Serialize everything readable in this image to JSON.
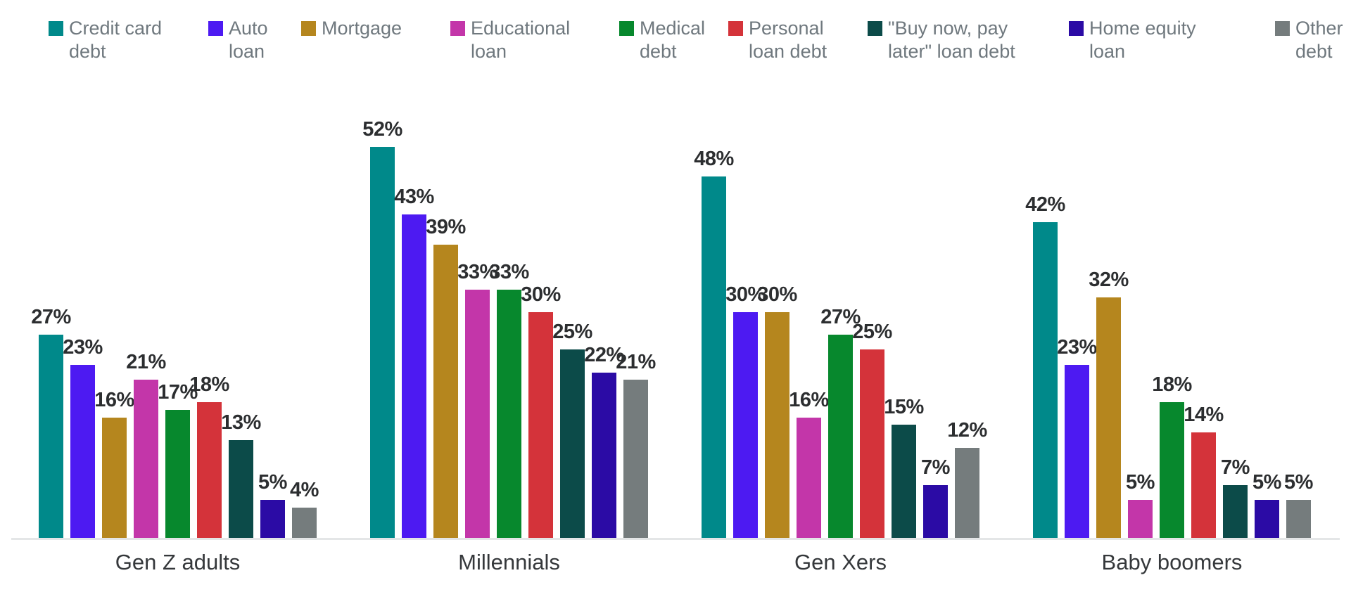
{
  "chart_data": {
    "type": "bar",
    "title": "",
    "xlabel": "",
    "ylabel": "",
    "value_suffix": "%",
    "ylim": [
      0,
      55
    ],
    "grid": false,
    "legend_position": "top",
    "categories": [
      "Gen Z adults",
      "Millennials",
      "Gen Xers",
      "Baby boomers"
    ],
    "series": [
      {
        "name": "Credit card debt",
        "legend_lines": "Credit card\ndebt",
        "color": "#00898A",
        "values": [
          27,
          52,
          48,
          42
        ]
      },
      {
        "name": "Auto loan",
        "legend_lines": "Auto\nloan",
        "color": "#4D1AF2",
        "values": [
          23,
          43,
          30,
          23
        ]
      },
      {
        "name": "Mortgage",
        "legend_lines": "Mortgage",
        "color": "#B5861E",
        "values": [
          16,
          39,
          30,
          32
        ]
      },
      {
        "name": "Educational loan",
        "legend_lines": "Educational\nloan",
        "color": "#C336A9",
        "values": [
          21,
          33,
          16,
          5
        ]
      },
      {
        "name": "Medical debt",
        "legend_lines": "Medical\ndebt",
        "color": "#07882D",
        "values": [
          17,
          33,
          27,
          18
        ]
      },
      {
        "name": "Personal loan debt",
        "legend_lines": "Personal\nloan debt",
        "color": "#D4333A",
        "values": [
          18,
          30,
          25,
          14
        ]
      },
      {
        "name": "\"Buy now, pay later\" loan debt",
        "legend_lines": "\"Buy now, pay\nlater\" loan debt",
        "color": "#0C4B49",
        "values": [
          13,
          25,
          15,
          7
        ]
      },
      {
        "name": "Home equity loan",
        "legend_lines": "Home equity\nloan",
        "color": "#2B0BA5",
        "values": [
          5,
          22,
          7,
          5
        ]
      },
      {
        "name": "Other debt",
        "legend_lines": "Other\ndebt",
        "color": "#757C7D",
        "values": [
          4,
          21,
          12,
          5
        ]
      }
    ]
  }
}
